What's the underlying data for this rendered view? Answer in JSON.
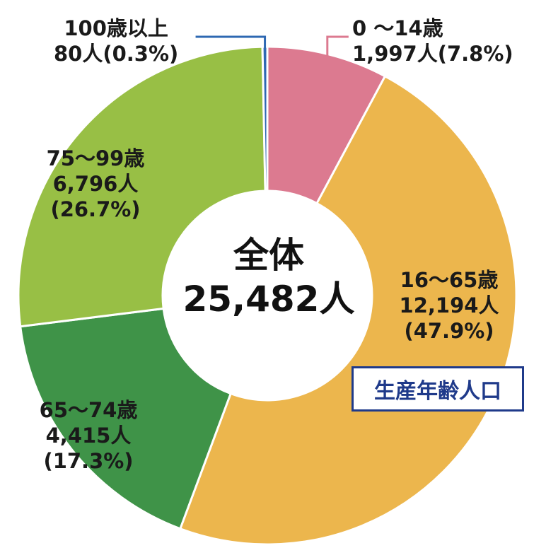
{
  "chart_data": {
    "type": "pie",
    "style": "donut",
    "center": {
      "title": "全体",
      "total": "25,482人"
    },
    "slices": [
      {
        "category": "0 〜14歳",
        "count": 1997,
        "count_label": "1,997人",
        "pct": 7.8,
        "pct_label": "(7.8%)",
        "color": "#dc7a90"
      },
      {
        "category": "16〜65歳",
        "count": 12194,
        "count_label": "12,194人",
        "pct": 47.9,
        "pct_label": "(47.9%)",
        "color": "#ecb64d"
      },
      {
        "category": "65〜74歳",
        "count": 4415,
        "count_label": "4,415人",
        "pct": 17.3,
        "pct_label": "(17.3%)",
        "color": "#3f9348"
      },
      {
        "category": "75〜99歳",
        "count": 6796,
        "count_label": "6,796人",
        "pct": 26.7,
        "pct_label": "(26.7%)",
        "color": "#98bf45"
      },
      {
        "category": "100歳以上",
        "count": 80,
        "count_label": "80人",
        "pct": 0.3,
        "pct_label": "(0.3%)",
        "color": "#2e68b2"
      }
    ],
    "annotation": "生産年齢人口",
    "annotation_color": "#1f3a8a"
  }
}
